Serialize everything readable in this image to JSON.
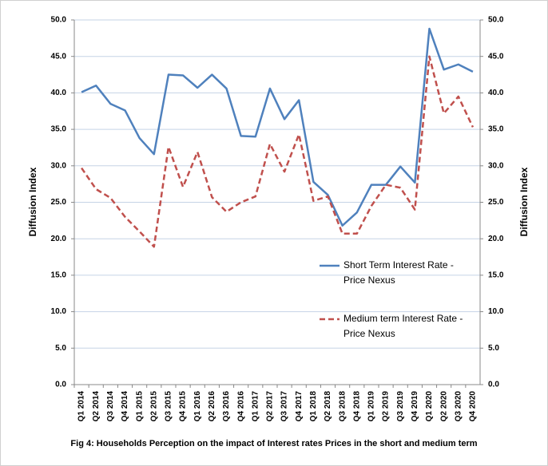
{
  "chart_data": {
    "type": "line",
    "title": "Fig 4: Households Perception on the impact of Interest rates Prices in the short and medium term",
    "ylabel": "Diffusion Index",
    "y2label": "Diffusion Index",
    "categories": [
      "Q1 2014",
      "Q2 2014",
      "Q3 2014",
      "Q4 2014",
      "Q1 2015",
      "Q2 2015",
      "Q3 2015",
      "Q4 2015",
      "Q1 2016",
      "Q2 2016",
      "Q3 2016",
      "Q4 2016",
      "Q1 2017",
      "Q2 2017",
      "Q3 2017",
      "Q4 2017",
      "Q1 2018",
      "Q2 2018",
      "Q3 2018",
      "Q4 2018",
      "Q1 2019",
      "Q2 2019",
      "Q3 2019",
      "Q4 2019",
      "Q1 2020",
      "Q2 2020",
      "Q3 2020",
      "Q4 2020"
    ],
    "series": [
      {
        "name": "Short Term Interest Rate - Price Nexus",
        "color": "#4f81bd",
        "dashed": false,
        "values": [
          40.1,
          41.0,
          38.5,
          37.6,
          33.8,
          31.6,
          42.5,
          42.4,
          40.7,
          42.5,
          40.6,
          34.1,
          34.0,
          40.6,
          36.4,
          39.0,
          27.8,
          26.0,
          21.8,
          23.6,
          27.4,
          27.4,
          29.9,
          27.7,
          48.8,
          43.2,
          43.9,
          42.9
        ]
      },
      {
        "name": "Medium term Interest Rate - Price Nexus",
        "color": "#c0504d",
        "dashed": true,
        "values": [
          29.7,
          26.8,
          25.6,
          23.0,
          21.0,
          18.9,
          32.6,
          27.1,
          31.9,
          25.7,
          23.7,
          25.0,
          25.8,
          33.0,
          29.2,
          34.3,
          25.2,
          25.8,
          20.7,
          20.7,
          24.5,
          27.4,
          27.0,
          24.0,
          45.0,
          37.2,
          39.5,
          35.3
        ]
      }
    ],
    "ylim": [
      0,
      50
    ],
    "yticks": [
      {
        "value": 0,
        "label": "0.0"
      },
      {
        "value": 5,
        "label": "5.0"
      },
      {
        "value": 10,
        "label": "10.0"
      },
      {
        "value": 15,
        "label": "15.0"
      },
      {
        "value": 20,
        "label": "20.0"
      },
      {
        "value": 25,
        "label": "25.0"
      },
      {
        "value": 30,
        "label": "30.0"
      },
      {
        "value": 35,
        "label": "35.0"
      },
      {
        "value": 40,
        "label": "40.0"
      },
      {
        "value": 45,
        "label": "45.0"
      },
      {
        "value": 50,
        "label": "50.0"
      }
    ],
    "y2lim": [
      0,
      50
    ],
    "y2ticks": [
      {
        "value": 0,
        "label": "0.0"
      },
      {
        "value": 5,
        "label": "5.0"
      },
      {
        "value": 10,
        "label": "10.0"
      },
      {
        "value": 15,
        "label": "15.0"
      },
      {
        "value": 20,
        "label": "20.0"
      },
      {
        "value": 25,
        "label": "25.0"
      },
      {
        "value": 30,
        "label": "30.0"
      },
      {
        "value": 35,
        "label": "35.0"
      },
      {
        "value": 40,
        "label": "40.0"
      },
      {
        "value": 45,
        "label": "45.0"
      },
      {
        "value": 50,
        "label": "50.0"
      }
    ],
    "grid": true
  }
}
